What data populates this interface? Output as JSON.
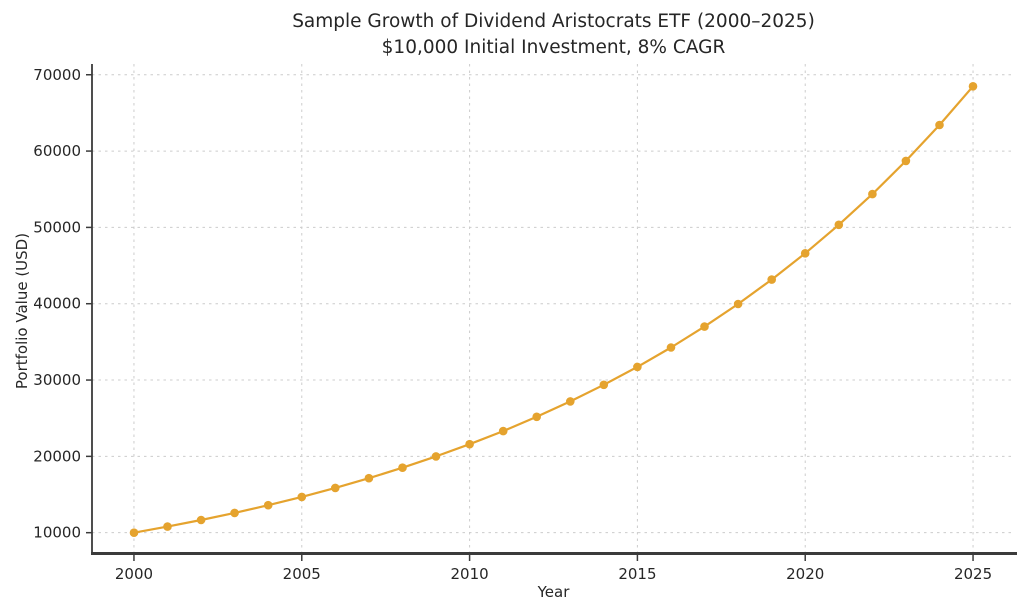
{
  "chart_data": {
    "type": "line",
    "title": "Sample Growth of Dividend Aristocrats ETF (2000–2025)",
    "subtitle": "$10,000 Initial Investment, 8% CAGR",
    "xlabel": "Year",
    "ylabel": "Portfolio Value (USD)",
    "x": [
      2000,
      2001,
      2002,
      2003,
      2004,
      2005,
      2006,
      2007,
      2008,
      2009,
      2010,
      2011,
      2012,
      2013,
      2014,
      2015,
      2016,
      2017,
      2018,
      2019,
      2020,
      2021,
      2022,
      2023,
      2024,
      2025
    ],
    "series": [
      {
        "name": "Portfolio Value",
        "values": [
          10000,
          10800,
          11664,
          12597,
          13605,
          14693,
          15869,
          17138,
          18509,
          19990,
          21589,
          23316,
          25182,
          27196,
          29372,
          31722,
          34259,
          37000,
          39960,
          43157,
          46610,
          50338,
          54365,
          58715,
          63412,
          68485
        ],
        "color": "#E5A32E",
        "marker": "circle"
      }
    ],
    "x_ticks": [
      2000,
      2005,
      2010,
      2015,
      2020,
      2025
    ],
    "y_ticks": [
      10000,
      20000,
      30000,
      40000,
      50000,
      60000,
      70000
    ],
    "xlim": [
      1998.75,
      2026.25
    ],
    "ylim": [
      7076,
      71409
    ],
    "grid": {
      "show": true,
      "style": "dashed",
      "color": "#CCCCCC"
    },
    "legend": "none",
    "styles": {
      "spine_color": "#3B3B3B",
      "tick_color": "#3B3B3B",
      "text_color": "#262626",
      "background": "#FFFFFF",
      "line_width": 2.2,
      "marker_radius": 4.3
    }
  }
}
